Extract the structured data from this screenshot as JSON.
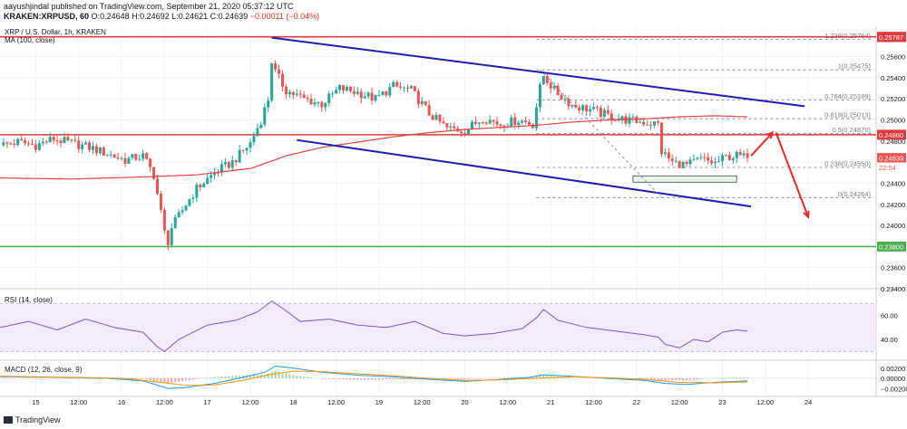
{
  "header": {
    "line1": "aayushjindal published on TradingView.com, September 21, 2020 05:37:12 UTC",
    "line2_symbol": "KRAKEN:XRPUSD, 60",
    "line2_ohlc": "0.24648 H:0.24692 L:0.24621 C:0.24639",
    "line2_prefix_o": "O:",
    "line2_change": "−0.00011 (−0.04%)"
  },
  "colors": {
    "up": "#26a69a",
    "down": "#ef5350",
    "ma": "#e0443a",
    "channel": "#1d1dae",
    "hline_red": "#e03a3a",
    "hline_green": "#4caf50",
    "rsi": "#7e57c2",
    "rsi_band": "#f1ebfb",
    "macd": "#2196f3",
    "signal": "#ff9800",
    "fib": "#787b86"
  },
  "footer": {
    "brand": "TradingView"
  },
  "chart_data": [
    {
      "type": "candlestick",
      "legend": [
        "XRP / U.S. Dollar, 1h, KRAKEN",
        "MA (100, close)"
      ],
      "y_axis_ticks": [
        0.256,
        0.254,
        0.252,
        0.25,
        0.248,
        0.246,
        0.244,
        0.242,
        0.24,
        0.238,
        0.236,
        0.234
      ],
      "ylim": [
        0.2328,
        0.2588
      ],
      "x_axis_ticks": [
        "15",
        "12:00",
        "16",
        "12:00",
        "17",
        "12:00",
        "18",
        "12:00",
        "19",
        "12:00",
        "20",
        "12:00",
        "21",
        "12:00",
        "22",
        "12:00",
        "23",
        "12:00",
        "24"
      ],
      "x_range_hours": [
        0,
        245
      ],
      "series": [
        {
          "name": "XRP / U.S. Dollar",
          "kind": "price",
          "anchors": [
            [
              0,
              0.2476
            ],
            [
              5,
              0.2479
            ],
            [
              10,
              0.2476
            ],
            [
              15,
              0.2482
            ],
            [
              20,
              0.2478
            ],
            [
              25,
              0.2474
            ],
            [
              30,
              0.2468
            ],
            [
              35,
              0.2462
            ],
            [
              40,
              0.2466
            ],
            [
              43,
              0.2448
            ],
            [
              45,
              0.2412
            ],
            [
              46,
              0.2393
            ],
            [
              47,
              0.2385
            ],
            [
              48,
              0.2398
            ],
            [
              52,
              0.242
            ],
            [
              55,
              0.2435
            ],
            [
              60,
              0.245
            ],
            [
              65,
              0.246
            ],
            [
              70,
              0.2478
            ],
            [
              73,
              0.25
            ],
            [
              75,
              0.252
            ],
            [
              76,
              0.2556
            ],
            [
              77,
              0.2545
            ],
            [
              80,
              0.2528
            ],
            [
              85,
              0.252
            ],
            [
              90,
              0.2515
            ],
            [
              95,
              0.253
            ],
            [
              100,
              0.2526
            ],
            [
              105,
              0.252
            ],
            [
              110,
              0.2532
            ],
            [
              115,
              0.2528
            ],
            [
              120,
              0.2506
            ],
            [
              125,
              0.2492
            ],
            [
              130,
              0.249
            ],
            [
              135,
              0.2502
            ],
            [
              140,
              0.2496
            ],
            [
              145,
              0.25
            ],
            [
              149,
              0.2496
            ],
            [
              151,
              0.253
            ],
            [
              152,
              0.2542
            ],
            [
              155,
              0.2528
            ],
            [
              160,
              0.2514
            ],
            [
              165,
              0.251
            ],
            [
              170,
              0.2504
            ],
            [
              175,
              0.25
            ],
            [
              180,
              0.2498
            ],
            [
              184,
              0.2496
            ],
            [
              185,
              0.247
            ],
            [
              188,
              0.246
            ],
            [
              192,
              0.2457
            ],
            [
              196,
              0.2463
            ],
            [
              200,
              0.2459
            ],
            [
              203,
              0.2465
            ],
            [
              206,
              0.2466
            ],
            [
              209,
              0.2464
            ]
          ]
        },
        {
          "name": "MA (100, close)",
          "kind": "ma",
          "anchors": [
            [
              0,
              0.2445
            ],
            [
              20,
              0.2444
            ],
            [
              40,
              0.2446
            ],
            [
              55,
              0.2448
            ],
            [
              70,
              0.2454
            ],
            [
              80,
              0.2466
            ],
            [
              90,
              0.2474
            ],
            [
              100,
              0.2479
            ],
            [
              110,
              0.2484
            ],
            [
              120,
              0.2488
            ],
            [
              130,
              0.2491
            ],
            [
              140,
              0.2493
            ],
            [
              150,
              0.2495
            ],
            [
              160,
              0.2498
            ],
            [
              170,
              0.25
            ],
            [
              180,
              0.2501
            ],
            [
              190,
              0.2503
            ],
            [
              200,
              0.2504
            ],
            [
              209,
              0.2503
            ]
          ]
        }
      ],
      "channel_lines": [
        {
          "x": [
            76,
            225
          ],
          "y": [
            0.2578,
            0.2513
          ]
        },
        {
          "x": [
            83,
            210
          ],
          "y": [
            0.2481,
            0.2418
          ]
        }
      ],
      "horizontal_levels": [
        {
          "value": 0.25788,
          "label": "0.25788",
          "color": "red"
        },
        {
          "value": 0.2486,
          "label": "0.24860",
          "color": "red"
        },
        {
          "value": 0.238,
          "label": "0.23800",
          "color": "green"
        }
      ],
      "price_labels": [
        {
          "value": 0.25787,
          "label": "0.25787"
        },
        {
          "value": 0.24639,
          "label": "0.24639"
        },
        {
          "value": 0.2455,
          "label": "22:54"
        }
      ],
      "fibonacci": [
        {
          "level": "1.236",
          "value": 0.25764,
          "label": "1.236(0.25764)"
        },
        {
          "level": "1",
          "value": 0.25475,
          "label": "1(0.25475)"
        },
        {
          "level": "0.764",
          "value": 0.25189,
          "label": "0.764(0.25189)"
        },
        {
          "level": "0.618",
          "value": 0.25013,
          "label": "0.618(0.25013)"
        },
        {
          "level": "0.5",
          "value": 0.2487,
          "label": "0.5(0.24870)"
        },
        {
          "level": "0.236",
          "value": 0.2455,
          "label": "0.236(0.24550)"
        },
        {
          "level": "0",
          "value": 0.24264,
          "label": "0(0.24264)"
        }
      ],
      "support_box": {
        "x": [
          177,
          206
        ],
        "y": [
          0.2447,
          0.2441
        ]
      },
      "projection_arrows": [
        {
          "x": [
            210,
            216
          ],
          "y": [
            0.2466,
            0.2488
          ]
        },
        {
          "x": [
            217,
            226
          ],
          "y": [
            0.2488,
            0.2408
          ]
        }
      ]
    },
    {
      "type": "line",
      "legend": "RSI (14, close)",
      "y_axis_ticks": [
        60,
        40
      ],
      "ylim": [
        25,
        80
      ],
      "band": [
        30,
        70
      ],
      "series": [
        {
          "name": "RSI (14, close)",
          "anchors": [
            [
              0,
              50
            ],
            [
              8,
              55
            ],
            [
              16,
              48
            ],
            [
              24,
              57
            ],
            [
              32,
              50
            ],
            [
              40,
              46
            ],
            [
              44,
              34
            ],
            [
              46,
              30
            ],
            [
              50,
              40
            ],
            [
              58,
              52
            ],
            [
              66,
              56
            ],
            [
              72,
              63
            ],
            [
              76,
              72
            ],
            [
              79,
              66
            ],
            [
              84,
              55
            ],
            [
              92,
              57
            ],
            [
              100,
              52
            ],
            [
              108,
              50
            ],
            [
              116,
              55
            ],
            [
              124,
              45
            ],
            [
              130,
              43
            ],
            [
              138,
              45
            ],
            [
              146,
              49
            ],
            [
              150,
              58
            ],
            [
              152,
              65
            ],
            [
              156,
              56
            ],
            [
              164,
              50
            ],
            [
              172,
              47
            ],
            [
              180,
              44
            ],
            [
              184,
              42
            ],
            [
              186,
              36
            ],
            [
              190,
              33
            ],
            [
              194,
              40
            ],
            [
              198,
              38
            ],
            [
              202,
              46
            ],
            [
              206,
              48
            ],
            [
              209,
              47
            ]
          ]
        }
      ]
    },
    {
      "type": "line",
      "legend": "MACD (12, 26, close, 9)",
      "y_axis_ticks": [
        0.002,
        0,
        -0.002
      ],
      "ylim": [
        -0.0032,
        0.0032
      ],
      "series": [
        {
          "name": "MACD",
          "anchors": [
            [
              0,
              0.0003
            ],
            [
              15,
              0.0002
            ],
            [
              30,
              0.0
            ],
            [
              40,
              -0.0005
            ],
            [
              47,
              -0.002
            ],
            [
              52,
              -0.0018
            ],
            [
              60,
              -0.001
            ],
            [
              68,
              0.0002
            ],
            [
              74,
              0.0012
            ],
            [
              77,
              0.0024
            ],
            [
              82,
              0.002
            ],
            [
              90,
              0.0012
            ],
            [
              100,
              0.0006
            ],
            [
              110,
              0.0003
            ],
            [
              120,
              -0.0002
            ],
            [
              130,
              -0.0006
            ],
            [
              140,
              -0.0002
            ],
            [
              148,
              0.0002
            ],
            [
              152,
              0.0007
            ],
            [
              160,
              0.0004
            ],
            [
              170,
              0.0
            ],
            [
              180,
              -0.0004
            ],
            [
              186,
              -0.001
            ],
            [
              192,
              -0.0012
            ],
            [
              200,
              -0.0008
            ],
            [
              209,
              -0.0005
            ]
          ]
        },
        {
          "name": "Signal",
          "anchors": [
            [
              0,
              0.0004
            ],
            [
              20,
              0.0002
            ],
            [
              35,
              0.0
            ],
            [
              45,
              -0.0008
            ],
            [
              52,
              -0.0014
            ],
            [
              60,
              -0.0013
            ],
            [
              68,
              -0.0004
            ],
            [
              76,
              0.0008
            ],
            [
              82,
              0.0014
            ],
            [
              90,
              0.0013
            ],
            [
              100,
              0.0009
            ],
            [
              110,
              0.0005
            ],
            [
              120,
              0.0
            ],
            [
              130,
              -0.0004
            ],
            [
              140,
              -0.0003
            ],
            [
              150,
              0.0
            ],
            [
              160,
              0.0003
            ],
            [
              170,
              0.0001
            ],
            [
              180,
              -0.0002
            ],
            [
              190,
              -0.0008
            ],
            [
              200,
              -0.0009
            ],
            [
              209,
              -0.0007
            ]
          ]
        }
      ]
    }
  ]
}
